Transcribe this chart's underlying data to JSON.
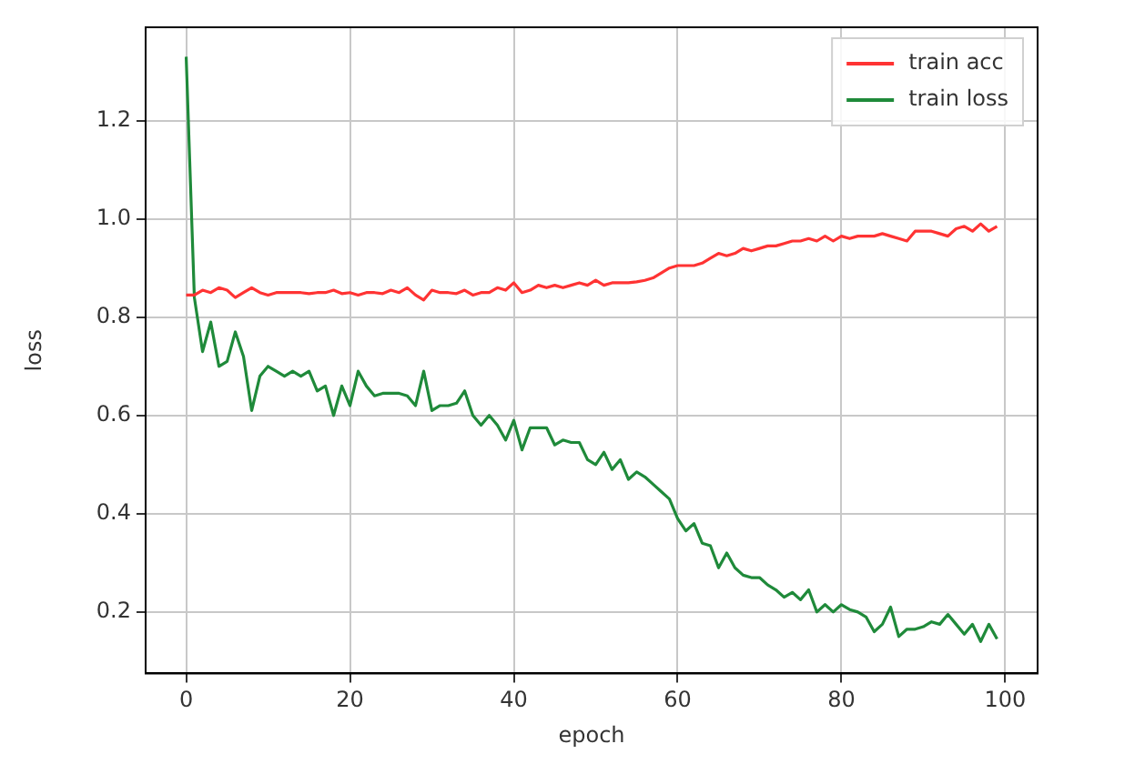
{
  "chart_data": {
    "type": "line",
    "xlabel": "epoch",
    "ylabel": "loss",
    "x": [
      0,
      1,
      2,
      3,
      4,
      5,
      6,
      7,
      8,
      9,
      10,
      11,
      12,
      13,
      14,
      15,
      16,
      17,
      18,
      19,
      20,
      21,
      22,
      23,
      24,
      25,
      26,
      27,
      28,
      29,
      30,
      31,
      32,
      33,
      34,
      35,
      36,
      37,
      38,
      39,
      40,
      41,
      42,
      43,
      44,
      45,
      46,
      47,
      48,
      49,
      50,
      51,
      52,
      53,
      54,
      55,
      56,
      57,
      58,
      59,
      60,
      61,
      62,
      63,
      64,
      65,
      66,
      67,
      68,
      69,
      70,
      71,
      72,
      73,
      74,
      75,
      76,
      77,
      78,
      79,
      80,
      81,
      82,
      83,
      84,
      85,
      86,
      87,
      88,
      89,
      90,
      91,
      92,
      93,
      94,
      95,
      96,
      97,
      98,
      99
    ],
    "series": [
      {
        "name": "train acc",
        "color": "#ff3333",
        "values": [
          0.845,
          0.845,
          0.855,
          0.85,
          0.86,
          0.855,
          0.84,
          0.85,
          0.86,
          0.85,
          0.845,
          0.85,
          0.85,
          0.85,
          0.85,
          0.848,
          0.85,
          0.85,
          0.855,
          0.848,
          0.85,
          0.845,
          0.85,
          0.85,
          0.848,
          0.855,
          0.85,
          0.86,
          0.845,
          0.835,
          0.855,
          0.85,
          0.85,
          0.848,
          0.855,
          0.845,
          0.85,
          0.85,
          0.86,
          0.855,
          0.87,
          0.85,
          0.855,
          0.865,
          0.86,
          0.865,
          0.86,
          0.865,
          0.87,
          0.865,
          0.875,
          0.865,
          0.87,
          0.87,
          0.87,
          0.872,
          0.875,
          0.88,
          0.89,
          0.9,
          0.905,
          0.905,
          0.905,
          0.91,
          0.92,
          0.93,
          0.925,
          0.93,
          0.94,
          0.935,
          0.94,
          0.945,
          0.945,
          0.95,
          0.955,
          0.955,
          0.96,
          0.955,
          0.965,
          0.955,
          0.965,
          0.96,
          0.965,
          0.965,
          0.965,
          0.97,
          0.965,
          0.96,
          0.955,
          0.975,
          0.975,
          0.975,
          0.97,
          0.965,
          0.98,
          0.985,
          0.975,
          0.99,
          0.975,
          0.985
        ]
      },
      {
        "name": "train loss",
        "color": "#1f8a3a",
        "values": [
          1.33,
          0.84,
          0.73,
          0.79,
          0.7,
          0.71,
          0.77,
          0.72,
          0.61,
          0.68,
          0.7,
          0.69,
          0.68,
          0.69,
          0.68,
          0.69,
          0.65,
          0.66,
          0.6,
          0.66,
          0.62,
          0.69,
          0.66,
          0.64,
          0.645,
          0.645,
          0.645,
          0.64,
          0.62,
          0.69,
          0.61,
          0.62,
          0.62,
          0.625,
          0.65,
          0.6,
          0.58,
          0.6,
          0.58,
          0.55,
          0.59,
          0.53,
          0.575,
          0.575,
          0.575,
          0.54,
          0.55,
          0.545,
          0.545,
          0.51,
          0.5,
          0.525,
          0.49,
          0.51,
          0.47,
          0.485,
          0.475,
          0.46,
          0.445,
          0.43,
          0.39,
          0.365,
          0.38,
          0.34,
          0.335,
          0.29,
          0.32,
          0.29,
          0.275,
          0.27,
          0.27,
          0.255,
          0.245,
          0.23,
          0.24,
          0.225,
          0.245,
          0.2,
          0.215,
          0.2,
          0.215,
          0.205,
          0.2,
          0.19,
          0.16,
          0.175,
          0.21,
          0.15,
          0.165,
          0.165,
          0.17,
          0.18,
          0.175,
          0.195,
          0.175,
          0.155,
          0.175,
          0.14,
          0.175,
          0.145
        ]
      }
    ],
    "xlim": [
      -4.95,
      103.95
    ],
    "xticks": [
      0,
      20,
      40,
      60,
      80,
      100
    ],
    "ylim": [
      0.075,
      1.39
    ],
    "yticks": [
      0.2,
      0.4,
      0.6,
      0.8,
      {
        "value": 1,
        "label": "1.0"
      },
      1.2
    ],
    "grid": true,
    "legend": "top right",
    "marker": "none",
    "line_style": "solid"
  }
}
